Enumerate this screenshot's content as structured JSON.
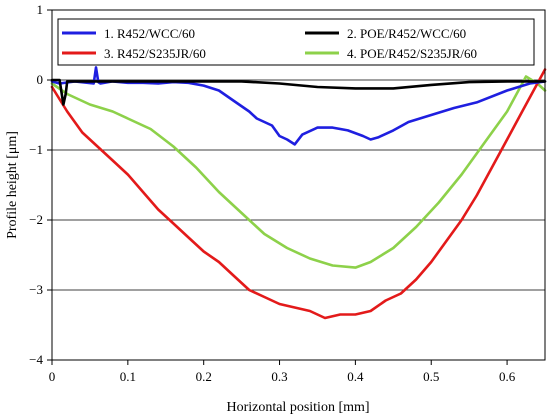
{
  "chart_data": {
    "type": "line",
    "title": "",
    "xlabel": "Horizontal position [mm]",
    "ylabel": "Profile height [μm]",
    "xlim": [
      0,
      0.65
    ],
    "ylim": [
      -4,
      1
    ],
    "xticks": [
      0,
      0.1,
      0.2,
      0.3,
      0.4,
      0.5,
      0.6
    ],
    "xtick_labels": [
      "0",
      "0.1",
      "0.2",
      "0.3",
      "0.4",
      "0.5",
      "0.6"
    ],
    "yticks": [
      -4,
      -3,
      -2,
      -1,
      0,
      1
    ],
    "ytick_labels": [
      "−4",
      "−3",
      "−2",
      "−1",
      "0",
      "1"
    ],
    "grid": "horizontal",
    "legend": {
      "placement": "top",
      "columns": 2
    },
    "series": [
      {
        "name": "1. R452/WCC/60",
        "color": "#1f1fe0",
        "x": [
          0,
          0.01,
          0.03,
          0.055,
          0.058,
          0.061,
          0.064,
          0.08,
          0.1,
          0.12,
          0.14,
          0.16,
          0.18,
          0.2,
          0.22,
          0.24,
          0.26,
          0.27,
          0.29,
          0.3,
          0.31,
          0.32,
          0.33,
          0.35,
          0.37,
          0.39,
          0.41,
          0.42,
          0.43,
          0.45,
          0.47,
          0.5,
          0.53,
          0.56,
          0.6,
          0.63,
          0.65
        ],
        "y": [
          -0.02,
          -0.05,
          -0.02,
          -0.05,
          0.18,
          -0.03,
          -0.05,
          -0.02,
          -0.04,
          -0.04,
          -0.05,
          -0.03,
          -0.04,
          -0.08,
          -0.15,
          -0.3,
          -0.45,
          -0.55,
          -0.65,
          -0.8,
          -0.85,
          -0.92,
          -0.78,
          -0.68,
          -0.68,
          -0.72,
          -0.8,
          -0.85,
          -0.82,
          -0.72,
          -0.6,
          -0.5,
          -0.4,
          -0.32,
          -0.15,
          -0.05,
          -0.02
        ]
      },
      {
        "name": "2. POE/R452/WCC/60",
        "color": "#000000",
        "x": [
          0,
          0.01,
          0.015,
          0.018,
          0.02,
          0.05,
          0.1,
          0.2,
          0.25,
          0.3,
          0.35,
          0.4,
          0.45,
          0.5,
          0.55,
          0.6,
          0.65
        ],
        "y": [
          0,
          0,
          -0.35,
          -0.2,
          -0.02,
          -0.02,
          -0.02,
          -0.02,
          -0.02,
          -0.05,
          -0.1,
          -0.12,
          -0.12,
          -0.07,
          -0.03,
          -0.02,
          -0.02
        ]
      },
      {
        "name": "3. R452/S235JR/60",
        "color": "#e31a1a",
        "x": [
          0,
          0.02,
          0.04,
          0.06,
          0.08,
          0.1,
          0.12,
          0.14,
          0.16,
          0.18,
          0.2,
          0.22,
          0.24,
          0.26,
          0.28,
          0.3,
          0.32,
          0.34,
          0.36,
          0.38,
          0.4,
          0.42,
          0.44,
          0.46,
          0.48,
          0.5,
          0.52,
          0.54,
          0.56,
          0.58,
          0.6,
          0.62,
          0.64,
          0.65
        ],
        "y": [
          -0.1,
          -0.45,
          -0.75,
          -0.95,
          -1.15,
          -1.35,
          -1.6,
          -1.85,
          -2.05,
          -2.25,
          -2.45,
          -2.6,
          -2.8,
          -3.0,
          -3.1,
          -3.2,
          -3.25,
          -3.3,
          -3.4,
          -3.35,
          -3.35,
          -3.3,
          -3.15,
          -3.05,
          -2.85,
          -2.6,
          -2.3,
          -2.0,
          -1.65,
          -1.25,
          -0.85,
          -0.45,
          -0.05,
          0.15
        ]
      },
      {
        "name": "4. POE/R452/S235JR/60",
        "color": "#8dd14a",
        "x": [
          0,
          0.02,
          0.05,
          0.08,
          0.1,
          0.13,
          0.16,
          0.19,
          0.22,
          0.25,
          0.28,
          0.31,
          0.34,
          0.37,
          0.4,
          0.42,
          0.45,
          0.48,
          0.51,
          0.54,
          0.57,
          0.6,
          0.625,
          0.64,
          0.65
        ],
        "y": [
          -0.05,
          -0.2,
          -0.35,
          -0.45,
          -0.55,
          -0.7,
          -0.95,
          -1.25,
          -1.6,
          -1.9,
          -2.2,
          -2.4,
          -2.55,
          -2.65,
          -2.68,
          -2.6,
          -2.4,
          -2.1,
          -1.75,
          -1.35,
          -0.9,
          -0.45,
          0.05,
          -0.05,
          -0.15
        ]
      }
    ]
  }
}
